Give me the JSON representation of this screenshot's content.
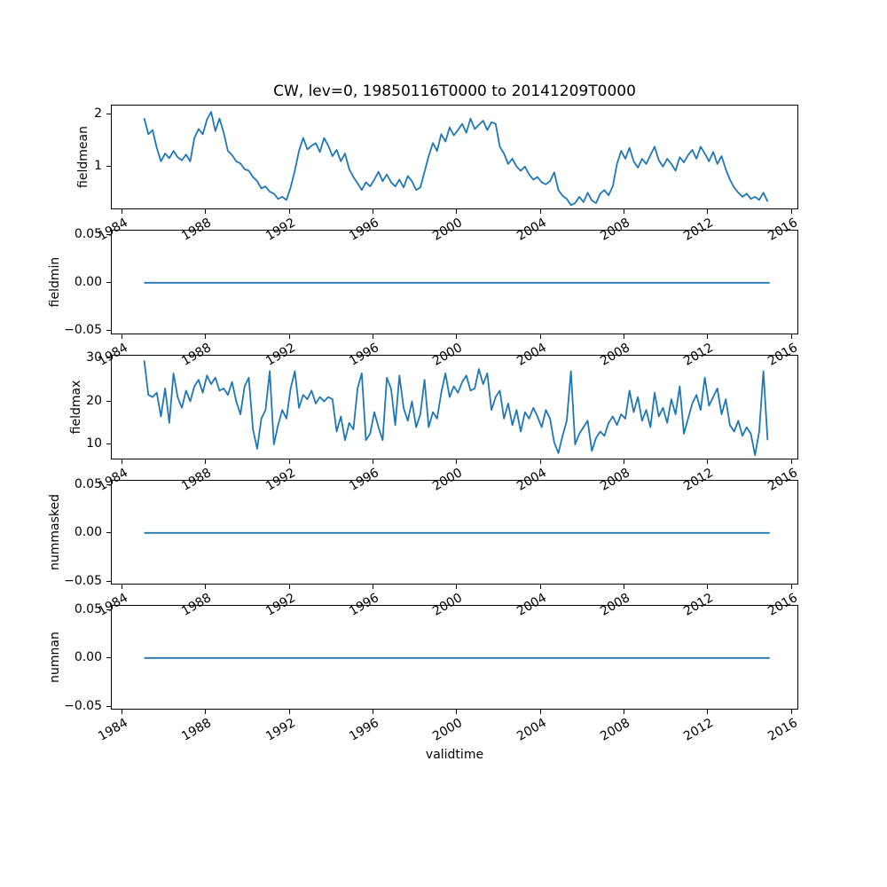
{
  "colors": {
    "line": "#1f77b4",
    "text": "#000000",
    "spine": "#000000",
    "background": "#ffffff"
  },
  "chart_data": {
    "type": "line",
    "title": "CW, lev=0, 19850116T0000 to 20141209T0000",
    "xlabel": "validtime",
    "x_range": [
      1983.49,
      2016.35
    ],
    "x_ticks": [
      {
        "v": 1984,
        "label": "1984"
      },
      {
        "v": 1988,
        "label": "1988"
      },
      {
        "v": 1992,
        "label": "1992"
      },
      {
        "v": 1996,
        "label": "1996"
      },
      {
        "v": 2000,
        "label": "2000"
      },
      {
        "v": 2004,
        "label": "2004"
      },
      {
        "v": 2008,
        "label": "2008"
      },
      {
        "v": 2012,
        "label": "2012"
      },
      {
        "v": 2016,
        "label": "2016"
      }
    ],
    "subplots": [
      {
        "ylabel": "fieldmean",
        "ylim": [
          0.17,
          2.17
        ],
        "y_ticks": [
          {
            "v": 1,
            "label": "1"
          },
          {
            "v": 2,
            "label": "2"
          }
        ],
        "series": {
          "x_start": 1985.04,
          "x_step": 0.2,
          "values": [
            1.93,
            1.62,
            1.7,
            1.36,
            1.1,
            1.25,
            1.16,
            1.3,
            1.18,
            1.12,
            1.23,
            1.1,
            1.55,
            1.72,
            1.62,
            1.9,
            2.05,
            1.68,
            1.92,
            1.65,
            1.3,
            1.22,
            1.1,
            1.06,
            0.95,
            0.92,
            0.8,
            0.72,
            0.58,
            0.62,
            0.52,
            0.48,
            0.38,
            0.42,
            0.36,
            0.6,
            0.92,
            1.3,
            1.55,
            1.33,
            1.4,
            1.45,
            1.28,
            1.55,
            1.4,
            1.2,
            1.32,
            1.1,
            1.25,
            0.95,
            0.8,
            0.68,
            0.55,
            0.7,
            0.62,
            0.75,
            0.9,
            0.72,
            0.85,
            0.7,
            0.62,
            0.75,
            0.6,
            0.82,
            0.72,
            0.55,
            0.6,
            0.9,
            1.2,
            1.45,
            1.3,
            1.62,
            1.48,
            1.75,
            1.6,
            1.7,
            1.82,
            1.65,
            1.92,
            1.72,
            1.8,
            1.88,
            1.7,
            1.85,
            1.82,
            1.38,
            1.25,
            1.05,
            1.15,
            1.0,
            0.92,
            1.0,
            0.85,
            0.75,
            0.8,
            0.7,
            0.66,
            0.72,
            0.89,
            0.55,
            0.44,
            0.38,
            0.26,
            0.3,
            0.42,
            0.32,
            0.5,
            0.35,
            0.3,
            0.48,
            0.55,
            0.45,
            0.62,
            1.05,
            1.3,
            1.15,
            1.36,
            1.1,
            0.98,
            1.15,
            1.05,
            1.22,
            1.38,
            1.12,
            1.0,
            1.15,
            1.05,
            0.92,
            1.18,
            1.08,
            1.22,
            1.32,
            1.15,
            1.38,
            1.25,
            1.1,
            1.28,
            1.05,
            1.2,
            0.95,
            0.75,
            0.6,
            0.5,
            0.42,
            0.48,
            0.38,
            0.42,
            0.36,
            0.5,
            0.33
          ]
        }
      },
      {
        "ylabel": "fieldmin",
        "ylim": [
          -0.054,
          0.054
        ],
        "y_ticks": [
          {
            "v": 0.05,
            "label": "0.05"
          },
          {
            "v": 0.0,
            "label": "0.00"
          },
          {
            "v": -0.05,
            "label": "−0.05"
          }
        ],
        "series": {
          "x_start": 1985.04,
          "x_step": 29.9,
          "values": [
            0,
            0
          ]
        }
      },
      {
        "ylabel": "fieldmax",
        "ylim": [
          6.4,
          30.6
        ],
        "y_ticks": [
          {
            "v": 10,
            "label": "10"
          },
          {
            "v": 20,
            "label": "20"
          },
          {
            "v": 30,
            "label": "30"
          }
        ],
        "series": {
          "x_start": 1985.04,
          "x_step": 0.2,
          "values": [
            29.5,
            21.5,
            21.0,
            22.0,
            16.5,
            23.0,
            15.0,
            26.5,
            21.0,
            18.5,
            22.5,
            20.0,
            23.5,
            25.0,
            22.0,
            26.0,
            24.0,
            25.5,
            22.5,
            23.0,
            21.5,
            24.5,
            20.0,
            17.0,
            23.5,
            25.5,
            13.5,
            9.0,
            16.0,
            18.0,
            27.0,
            10.0,
            14.5,
            18.0,
            16.0,
            23.0,
            27.0,
            18.5,
            21.5,
            20.5,
            22.5,
            19.5,
            21.0,
            20.0,
            21.0,
            20.5,
            13.0,
            16.5,
            11.0,
            15.0,
            13.5,
            23.0,
            26.5,
            11.0,
            12.5,
            17.5,
            14.0,
            11.0,
            25.5,
            23.0,
            14.5,
            26.0,
            18.5,
            15.5,
            20.0,
            14.0,
            17.0,
            25.0,
            14.0,
            17.5,
            16.0,
            22.0,
            26.5,
            21.0,
            23.5,
            22.0,
            24.5,
            26.0,
            22.5,
            23.0,
            27.5,
            24.0,
            26.5,
            18.0,
            21.0,
            22.5,
            16.0,
            19.5,
            14.5,
            18.0,
            13.0,
            17.5,
            16.0,
            18.5,
            16.5,
            14.0,
            18.0,
            16.0,
            10.5,
            8.0,
            12.0,
            15.5,
            27.0,
            10.0,
            12.5,
            14.0,
            15.5,
            8.5,
            11.5,
            13.0,
            12.0,
            15.0,
            16.5,
            14.5,
            17.0,
            16.0,
            22.5,
            17.5,
            21.0,
            15.5,
            18.0,
            14.0,
            22.0,
            16.5,
            18.5,
            15.0,
            20.5,
            17.0,
            23.5,
            12.5,
            16.0,
            19.5,
            21.5,
            18.0,
            25.5,
            19.0,
            21.0,
            23.0,
            17.0,
            20.5,
            14.5,
            13.0,
            15.5,
            12.0,
            14.0,
            12.5,
            7.5,
            13.0,
            27.0,
            11.0
          ]
        }
      },
      {
        "ylabel": "nummasked",
        "ylim": [
          -0.054,
          0.054
        ],
        "y_ticks": [
          {
            "v": 0.05,
            "label": "0.05"
          },
          {
            "v": 0.0,
            "label": "0.00"
          },
          {
            "v": -0.05,
            "label": "−0.05"
          }
        ],
        "series": {
          "x_start": 1985.04,
          "x_step": 29.9,
          "values": [
            0,
            0
          ]
        }
      },
      {
        "ylabel": "numnan",
        "ylim": [
          -0.054,
          0.054
        ],
        "y_ticks": [
          {
            "v": 0.05,
            "label": "0.05"
          },
          {
            "v": 0.0,
            "label": "0.00"
          },
          {
            "v": -0.05,
            "label": "−0.05"
          }
        ],
        "series": {
          "x_start": 1985.04,
          "x_step": 29.9,
          "values": [
            0,
            0
          ]
        }
      }
    ]
  }
}
